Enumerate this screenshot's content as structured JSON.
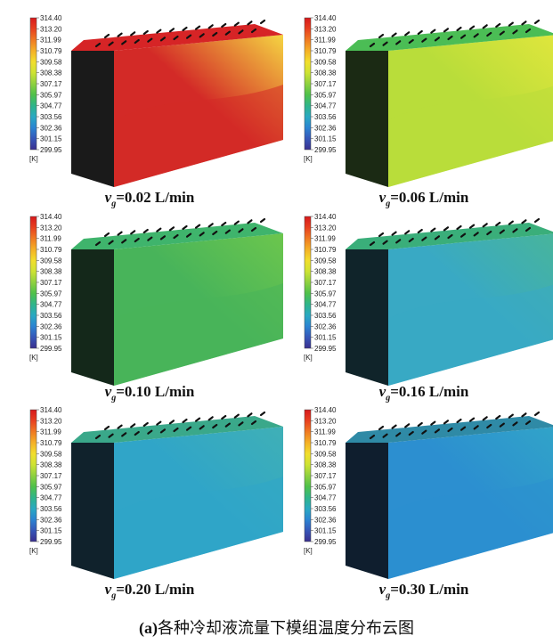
{
  "colorbar": {
    "ticks": [
      "314.40",
      "313.20",
      "311.99",
      "310.79",
      "309.58",
      "308.38",
      "307.17",
      "305.97",
      "304.77",
      "303.56",
      "302.36",
      "301.15",
      "299.95"
    ],
    "unit": "[K]",
    "colors": [
      "#d7191c",
      "#e8401f",
      "#f07a22",
      "#f5b026",
      "#f2de2c",
      "#cde333",
      "#8fd13f",
      "#4fc14a",
      "#2fb58a",
      "#29a9c2",
      "#2b84d2",
      "#3656b8",
      "#3a2f8f"
    ]
  },
  "panels": [
    {
      "symbol": "v",
      "subscript": "g",
      "value": "=0.02 L/min",
      "top_color": "#d62426",
      "front_color": "#d32a27",
      "side_color": "#1a1a1a",
      "hot_color": "#f5d542"
    },
    {
      "symbol": "v",
      "subscript": "g",
      "value": "=0.06 L/min",
      "top_color": "#4bbd55",
      "front_color": "#b9dd3a",
      "side_color": "#1b2a14",
      "hot_color": "#e0e63c"
    },
    {
      "symbol": "v",
      "subscript": "g",
      "value": "=0.10 L/min",
      "top_color": "#3fb46c",
      "front_color": "#48b45a",
      "side_color": "#14281a",
      "hot_color": "#6cc64d"
    },
    {
      "symbol": "v",
      "subscript": "g",
      "value": "=0.16 L/min",
      "top_color": "#3aae7a",
      "front_color": "#39a9c4",
      "side_color": "#10242a",
      "hot_color": "#48b59a"
    },
    {
      "symbol": "v",
      "subscript": "g",
      "value": "=0.20 L/min",
      "top_color": "#3aa88a",
      "front_color": "#30a5c8",
      "side_color": "#10222c",
      "hot_color": "#3fb0b6"
    },
    {
      "symbol": "v",
      "subscript": "g",
      "value": "=0.30 L/min",
      "top_color": "#2f8aa6",
      "front_color": "#2c8fd0",
      "side_color": "#0f1e2e",
      "hot_color": "#31a4c8"
    }
  ],
  "figure_caption": {
    "label": "(a)",
    "text": "各种冷却液流量下模组温度分布云图"
  }
}
